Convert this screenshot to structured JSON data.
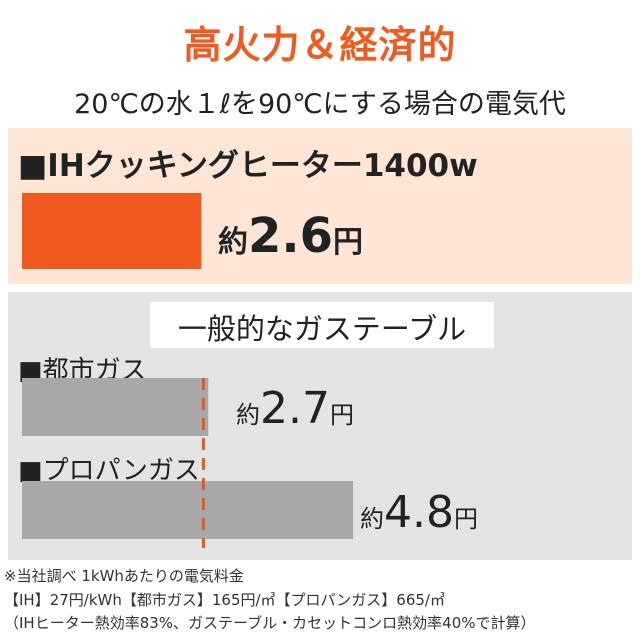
{
  "colors": {
    "accent": "#f05a1e",
    "ih_panel_bg": "#fde6d5",
    "gas_panel_bg": "#e4e4e4",
    "gas_bar": "#a8a8a8",
    "dash_line": "#e8581d"
  },
  "title": "高火力＆経済的",
  "subtitle": "20℃の水１ℓを90℃にする場合の電気代",
  "ih": {
    "label": "■IHクッキングヒーター1400w",
    "value_prefix": "約",
    "value_text": "2.6",
    "value_unit": "円"
  },
  "gas": {
    "heading": "一般的なガステーブル",
    "city": {
      "label": "■都市ガス",
      "value_prefix": "約",
      "value_text": "2.7",
      "value_unit": "円"
    },
    "propane": {
      "label": "■プロパンガス",
      "value_prefix": "約",
      "value_text": "4.8",
      "value_unit": "円"
    }
  },
  "chart_data": {
    "type": "bar",
    "title": "高火力＆経済的",
    "subtitle": "20℃の水１ℓを90℃にする場合の電気代",
    "categories": [
      "IHクッキングヒーター1400w",
      "都市ガス",
      "プロパンガス"
    ],
    "values": [
      2.6,
      2.7,
      4.8
    ],
    "unit": "円",
    "reference_line": 2.6
  },
  "notes": [
    "※当社調べ 1kWhあたりの電気料金",
    "【IH】27円/kWh【都市ガス】165円/㎥【プロパンガス】665/㎥",
    "（IHヒーター熱効率83%、ガステーブル・カセットコンロ熱効率40%で計算）"
  ]
}
